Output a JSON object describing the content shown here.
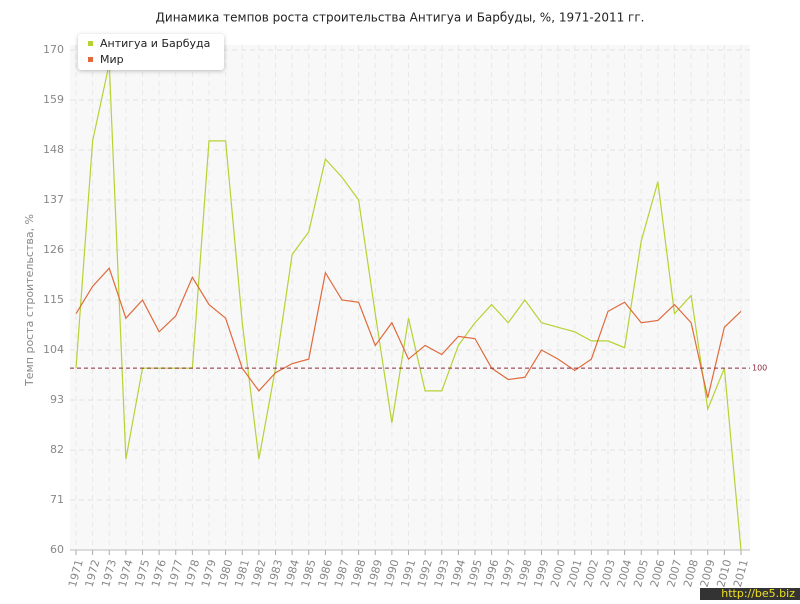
{
  "chart_data": {
    "type": "line",
    "title": "Динамика темпов роста строительства Антигуа и Барбуды, %, 1971-2011 гг.",
    "y_label": "Темп роста строительства, %",
    "categories": [
      "1971",
      "1972",
      "1973",
      "1974",
      "1975",
      "1976",
      "1977",
      "1978",
      "1979",
      "1980",
      "1981",
      "1982",
      "1983",
      "1984",
      "1985",
      "1986",
      "1987",
      "1988",
      "1989",
      "1990",
      "1991",
      "1992",
      "1993",
      "1994",
      "1995",
      "1996",
      "1997",
      "1998",
      "1999",
      "2000",
      "2001",
      "2002",
      "2003",
      "2004",
      "2005",
      "2006",
      "2007",
      "2008",
      "2009",
      "2010",
      "2011"
    ],
    "series": [
      {
        "name": "Антигуа и Барбуда",
        "color": "#b5d334",
        "values": [
          100,
          150,
          167,
          80,
          100,
          100,
          100,
          100,
          150,
          150,
          110,
          80,
          100,
          125,
          130,
          146,
          142,
          137,
          112,
          88,
          111,
          95,
          95,
          105,
          110,
          114,
          110,
          115,
          110,
          109,
          108,
          106,
          106,
          104.5,
          128,
          141,
          112,
          116,
          91,
          100,
          60
        ]
      },
      {
        "name": "Мир",
        "color": "#e06a3b",
        "values": [
          112,
          118,
          122,
          111,
          115,
          108,
          111.5,
          120,
          114,
          111,
          100,
          95,
          99,
          101,
          102,
          121,
          115,
          114.5,
          105,
          110,
          102,
          105,
          103,
          107,
          106.5,
          100,
          97.5,
          98,
          104,
          102,
          99.5,
          102,
          112.5,
          114.5,
          110,
          110.5,
          114,
          110,
          93.5,
          109,
          112.5
        ]
      }
    ],
    "reference_line": 100,
    "reference_color": "#8b2c3c",
    "ylim": [
      60,
      170
    ],
    "yticks": [
      60,
      71,
      82,
      93,
      104,
      115,
      126,
      137,
      148,
      159,
      170
    ],
    "grid": true,
    "legend": "top-left",
    "watermark": "http://be5.biz"
  }
}
